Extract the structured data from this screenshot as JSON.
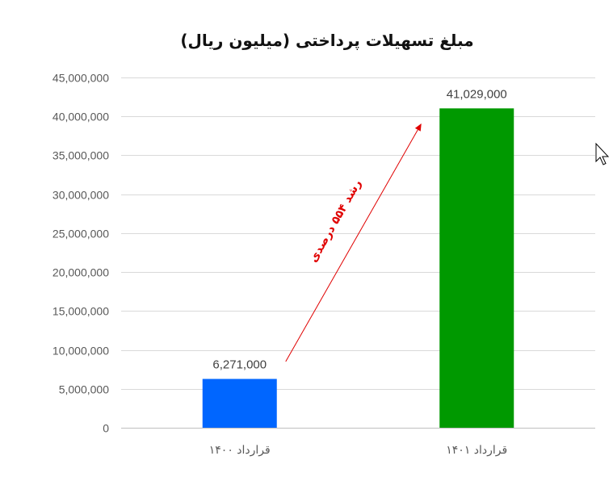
{
  "chart_data": {
    "type": "bar",
    "title": "مبلغ تسهیلات پرداختی (میلیون ریال)",
    "categories": [
      "قرارداد ۱۴۰۰",
      "قرارداد ۱۴۰۱"
    ],
    "values": [
      6271000,
      41029000
    ],
    "value_labels": [
      "6,271,000",
      "41,029,000"
    ],
    "bar_colors": [
      "#0066ff",
      "#009900"
    ],
    "ylim": [
      0,
      45000000
    ],
    "y_ticks": [
      0,
      5000000,
      10000000,
      15000000,
      20000000,
      25000000,
      30000000,
      35000000,
      40000000,
      45000000
    ],
    "y_tick_labels": [
      "0",
      "5,000,000",
      "10,000,000",
      "15,000,000",
      "20,000,000",
      "25,000,000",
      "30,000,000",
      "35,000,000",
      "40,000,000",
      "45,000,000"
    ],
    "grid": true,
    "legend": "none",
    "annotation": {
      "text": "رشد ۵۵۴ درصدی",
      "color": "#e00000",
      "from": {
        "category": 0,
        "value": 8500000
      },
      "to": {
        "category": 1,
        "value": 39000000
      }
    }
  }
}
